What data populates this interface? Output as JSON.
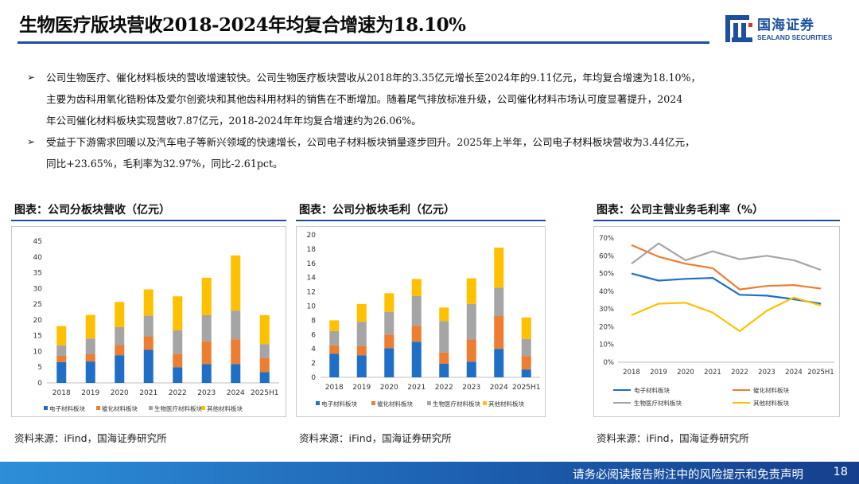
{
  "header": {
    "title": "生物医疗版块营收2018-2024年均复合增速为18.10%",
    "logo_name": "国海证券",
    "logo_sub": "SEALAND SECURITIES"
  },
  "bullets": [
    {
      "marker": "➢",
      "lines": [
        "公司生物医疗、催化材料板块的营收增速较快。公司生物医疗板块营收从2018年的3.35亿元增长至2024年的9.11亿元，年均复合增速为18.10%，",
        "主要为齿科用氧化锆粉体及爱尔创瓷块和其他齿科用材料的销售在不断增加。随着尾气排放标准升级，公司催化材料市场认可度显著提升，2024",
        "年公司催化材料板块实现营收7.87亿元，2018-2024年年均复合增速约为26.06%。"
      ]
    },
    {
      "marker": "➢",
      "lines": [
        "受益于下游需求回暖以及汽车电子等新兴领域的快速增长，公司电子材料板块销量逐步回升。2025年上半年，公司电子材料板块营收为3.44亿元，",
        "同比+23.65%，毛利率为32.97%，同比-2.61pct。"
      ]
    }
  ],
  "footer": {
    "disclaimer": "请务必阅读报告附注中的风险提示和免责声明",
    "page": "18"
  },
  "colors": {
    "electronic": "#1f6fc6",
    "catalyst": "#ed7d31",
    "bio": "#a5a5a5",
    "other": "#ffc000",
    "brand": "#1d4f9e"
  },
  "panels": [
    {
      "title": "图表：公司分板块营收（亿元）",
      "source": "资料来源：iFind，国海证券研究所"
    },
    {
      "title": "图表：公司分板块毛利（亿元）",
      "source": "资料来源：iFind，国海证券研究所"
    },
    {
      "title": "图表：公司主营业务毛利率（%）",
      "source": "资料来源：iFind，国海证券研究所"
    }
  ],
  "chart_data": [
    {
      "type": "bar",
      "stacked": true,
      "title": "图表：公司分板块营收（亿元）",
      "categories": [
        "2018",
        "2019",
        "2020",
        "2021",
        "2022",
        "2023",
        "2024",
        "2025H1"
      ],
      "ylim": [
        0,
        45
      ],
      "yticks": [
        0,
        5,
        10,
        15,
        20,
        25,
        30,
        35,
        40,
        45
      ],
      "series": [
        {
          "name": "电子材料板块",
          "values": [
            6.6,
            6.8,
            8.8,
            10.5,
            5.0,
            6.0,
            6.0,
            3.44
          ]
        },
        {
          "name": "催化材料板块",
          "values": [
            2.0,
            2.3,
            3.2,
            4.3,
            4.2,
            7.2,
            7.87,
            4.5
          ]
        },
        {
          "name": "生物医疗材料板块",
          "values": [
            3.35,
            5.0,
            5.7,
            6.6,
            7.5,
            8.3,
            9.11,
            4.4
          ]
        },
        {
          "name": "其他材料板块",
          "values": [
            6.1,
            7.5,
            8.0,
            8.3,
            10.8,
            11.9,
            17.5,
            9.2
          ]
        }
      ]
    },
    {
      "type": "bar",
      "stacked": true,
      "title": "图表：公司分板块毛利（亿元）",
      "categories": [
        "2018",
        "2019",
        "2020",
        "2021",
        "2022",
        "2023",
        "2024",
        "2025H1"
      ],
      "ylim": [
        0,
        20
      ],
      "yticks": [
        0,
        2,
        4,
        6,
        8,
        10,
        12,
        14,
        16,
        18,
        20
      ],
      "series": [
        {
          "name": "电子材料板块",
          "values": [
            3.3,
            3.1,
            4.1,
            5.0,
            1.9,
            2.2,
            4.0,
            1.1
          ]
        },
        {
          "name": "催化材料板块",
          "values": [
            1.2,
            1.3,
            1.9,
            2.2,
            1.6,
            3.1,
            4.6,
            1.9
          ]
        },
        {
          "name": "生物医疗材料板块",
          "values": [
            2.0,
            3.4,
            3.2,
            4.2,
            4.4,
            5.0,
            4.0,
            2.4
          ]
        },
        {
          "name": "其他材料板块",
          "values": [
            1.5,
            2.5,
            2.6,
            2.4,
            1.9,
            3.6,
            5.6,
            3.0
          ]
        }
      ]
    },
    {
      "type": "line",
      "title": "图表：公司主营业务毛利率（%）",
      "categories": [
        "2018",
        "2019",
        "2020",
        "2021",
        "2022",
        "2023",
        "2024",
        "2025H1"
      ],
      "ylim": [
        0,
        70
      ],
      "yticks": [
        0,
        10,
        20,
        30,
        40,
        50,
        60,
        70
      ],
      "ytick_suffix": "%",
      "series": [
        {
          "name": "电子材料板块",
          "values": [
            50,
            46,
            47,
            47.5,
            38,
            37.5,
            35.5,
            33
          ]
        },
        {
          "name": "催化材料板块",
          "values": [
            66,
            59.5,
            55.5,
            53,
            41,
            43,
            43.5,
            41.5
          ]
        },
        {
          "name": "生物医疗材料板块",
          "values": [
            55.5,
            67,
            57.5,
            62.5,
            58,
            60,
            57.5,
            52
          ]
        },
        {
          "name": "其他材料板块",
          "values": [
            26.5,
            33,
            33.5,
            28,
            17.5,
            29,
            36.5,
            32
          ]
        }
      ]
    }
  ]
}
